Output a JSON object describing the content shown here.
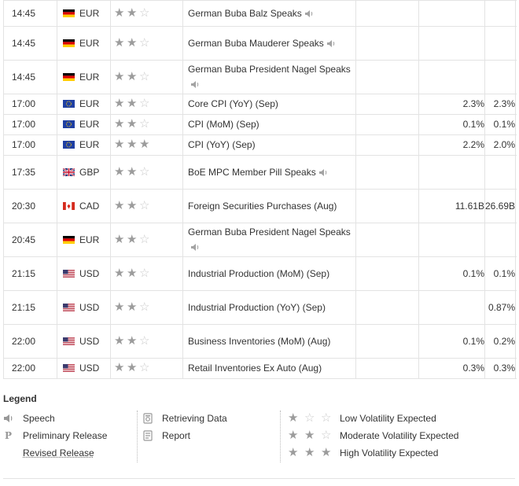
{
  "colors": {
    "star_on": "#9c9c9c",
    "star_off": "#c9c9c9",
    "border": "#e3e3e3",
    "text": "#333333"
  },
  "events": [
    {
      "time": "14:45",
      "flag": "de-flag-icon",
      "currency": "EUR",
      "stars": 2,
      "event": "German Buba Balz Speaks",
      "speech": true,
      "actual": "",
      "forecast": "",
      "previous": ""
    },
    {
      "time": "14:45",
      "flag": "de-flag-icon",
      "currency": "EUR",
      "stars": 2,
      "event": "German Buba Mauderer Speaks",
      "speech": true,
      "actual": "",
      "forecast": "",
      "previous": ""
    },
    {
      "time": "14:45",
      "flag": "de-flag-icon",
      "currency": "EUR",
      "stars": 2,
      "event": "German Buba President Nagel Speaks",
      "speech": true,
      "actual": "",
      "forecast": "",
      "previous": ""
    },
    {
      "time": "17:00",
      "flag": "eu-flag-icon",
      "currency": "EUR",
      "stars": 2,
      "event": "Core CPI (YoY) (Sep)",
      "speech": false,
      "actual": "",
      "forecast": "2.3%",
      "previous": "2.3%"
    },
    {
      "time": "17:00",
      "flag": "eu-flag-icon",
      "currency": "EUR",
      "stars": 2,
      "event": "CPI (MoM) (Sep)",
      "speech": false,
      "actual": "",
      "forecast": "0.1%",
      "previous": "0.1%"
    },
    {
      "time": "17:00",
      "flag": "eu-flag-icon",
      "currency": "EUR",
      "stars": 3,
      "event": "CPI (YoY) (Sep)",
      "speech": false,
      "actual": "",
      "forecast": "2.2%",
      "previous": "2.0%"
    },
    {
      "time": "17:35",
      "flag": "gb-flag-icon",
      "currency": "GBP",
      "stars": 2,
      "event": "BoE MPC Member Pill Speaks",
      "speech": true,
      "actual": "",
      "forecast": "",
      "previous": ""
    },
    {
      "time": "20:30",
      "flag": "ca-flag-icon",
      "currency": "CAD",
      "stars": 2,
      "event": "Foreign Securities Purchases (Aug)",
      "speech": false,
      "actual": "",
      "forecast": "11.61B",
      "previous": "26.69B"
    },
    {
      "time": "20:45",
      "flag": "de-flag-icon",
      "currency": "EUR",
      "stars": 2,
      "event": "German Buba President Nagel Speaks",
      "speech": true,
      "actual": "",
      "forecast": "",
      "previous": ""
    },
    {
      "time": "21:15",
      "flag": "us-flag-icon",
      "currency": "USD",
      "stars": 2,
      "event": "Industrial Production (MoM) (Sep)",
      "speech": false,
      "actual": "",
      "forecast": "0.1%",
      "previous": "0.1%"
    },
    {
      "time": "21:15",
      "flag": "us-flag-icon",
      "currency": "USD",
      "stars": 2,
      "event": "Industrial Production (YoY) (Sep)",
      "speech": false,
      "actual": "",
      "forecast": "",
      "previous": "0.87%"
    },
    {
      "time": "22:00",
      "flag": "us-flag-icon",
      "currency": "USD",
      "stars": 2,
      "event": "Business Inventories (MoM) (Aug)",
      "speech": false,
      "actual": "",
      "forecast": "0.1%",
      "previous": "0.2%"
    },
    {
      "time": "22:00",
      "flag": "us-flag-icon",
      "currency": "USD",
      "stars": 2,
      "event": "Retail Inventories Ex Auto (Aug)",
      "speech": false,
      "actual": "",
      "forecast": "0.3%",
      "previous": "0.3%"
    }
  ],
  "legend": {
    "title": "Legend",
    "speech": "Speech",
    "preliminary": "Preliminary Release",
    "preliminary_glyph": "P",
    "revised": "Revised Release",
    "retrieving": "Retrieving Data",
    "report": "Report",
    "low": "Low Volatility Expected",
    "moderate": "Moderate Volatility Expected",
    "high": "High Volatility Expected"
  }
}
